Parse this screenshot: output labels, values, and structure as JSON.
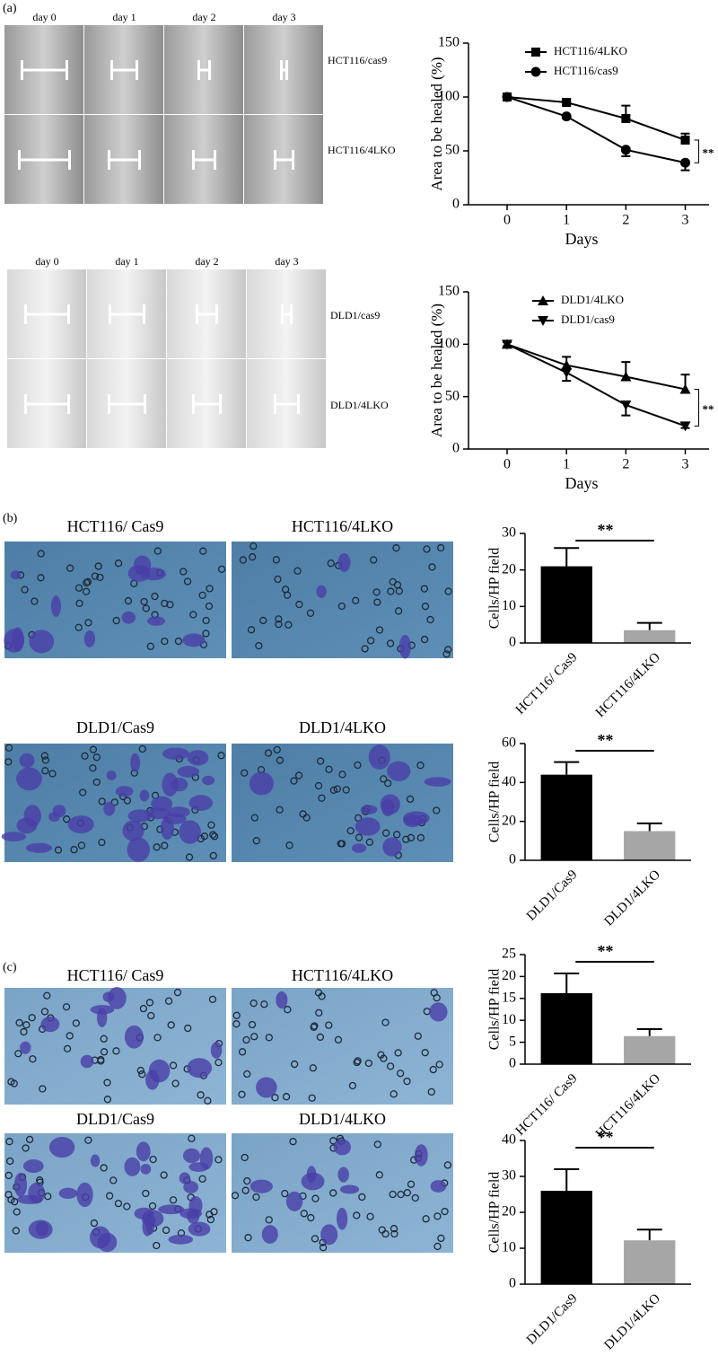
{
  "panels": [
    {
      "label": "(a)",
      "groups": [
        {
          "day_labels": [
            "day 0",
            "day 1",
            "day 2",
            "day 3"
          ],
          "row_labels": [
            "HCT116/cas9",
            "HCT116/4LKO"
          ]
        },
        {
          "day_labels": [
            "day 0",
            "day 1",
            "day 2",
            "day 3"
          ],
          "row_labels": [
            "DLD1/cas9",
            "DLD1/4LKO"
          ]
        }
      ]
    },
    {
      "label": "(b)",
      "image_labels": [
        "HCT116/ Cas9",
        "HCT116/4LKO",
        "DLD1/Cas9",
        "DLD1/4LKO"
      ]
    },
    {
      "label": "(c)",
      "image_labels": [
        "HCT116/ Cas9",
        "HCT116/4LKO",
        "DLD1/Cas9",
        "DLD1/4LKO"
      ]
    }
  ],
  "chart_data": [
    {
      "type": "line",
      "ylabel": "Area to be healed (%)",
      "xlabel": "Days",
      "x": [
        0,
        1,
        2,
        3
      ],
      "xlim": [
        -0.65,
        3.4
      ],
      "xticks": [
        0,
        1,
        2,
        3
      ],
      "ylim": [
        0,
        150
      ],
      "yticks": [
        0,
        50,
        100,
        150
      ],
      "series": [
        {
          "name": "HCT116/4LKO",
          "color": "#000000",
          "marker": "square",
          "values": [
            100,
            95,
            80,
            60
          ],
          "errors": [
            2,
            3,
            12,
            6
          ]
        },
        {
          "name": "HCT116/cas9",
          "color": "#000000",
          "marker": "circle",
          "values": [
            100,
            82,
            51,
            39
          ],
          "errors": [
            1,
            2,
            6,
            7
          ]
        }
      ],
      "annotation": "**"
    },
    {
      "type": "line",
      "ylabel": "Area to be healed (%)",
      "xlabel": "Days",
      "x": [
        0,
        1,
        2,
        3
      ],
      "xlim": [
        -0.65,
        3.4
      ],
      "xticks": [
        0,
        1,
        2,
        3
      ],
      "ylim": [
        0,
        150
      ],
      "yticks": [
        0,
        50,
        100,
        150
      ],
      "series": [
        {
          "name": "DLD1/4LKO",
          "color": "#000000",
          "marker": "triangle-up",
          "values": [
            100,
            80,
            69,
            57
          ],
          "errors": [
            2,
            8,
            14,
            14
          ]
        },
        {
          "name": "DLD1/cas9",
          "color": "#000000",
          "marker": "triangle-down",
          "values": [
            100,
            73,
            42,
            22
          ],
          "errors": [
            2,
            8,
            10,
            2
          ]
        }
      ],
      "annotation": "**"
    },
    {
      "type": "bar",
      "ylabel": "Cells/HP field",
      "categories": [
        "HCT116/ Cas9",
        "HCT116/4LKO"
      ],
      "values": [
        21,
        3.5
      ],
      "errors": [
        5,
        2
      ],
      "colors": [
        "#000000",
        "#a6a6a6"
      ],
      "ylim": [
        0,
        30
      ],
      "yticks": [
        0,
        10,
        20,
        30
      ],
      "annotation": "**"
    },
    {
      "type": "bar",
      "ylabel": "Cells/HP field",
      "categories": [
        "DLD1/Cas9",
        "DLD1/4LKO"
      ],
      "values": [
        44,
        15
      ],
      "errors": [
        6.5,
        4
      ],
      "colors": [
        "#000000",
        "#a6a6a6"
      ],
      "ylim": [
        0,
        60
      ],
      "yticks": [
        0,
        20,
        40,
        60
      ],
      "annotation": "**"
    },
    {
      "type": "bar",
      "ylabel": "Cells/HP field",
      "categories": [
        "HCT116/ Cas9",
        "HCT116/4LKO"
      ],
      "values": [
        16.2,
        6.4
      ],
      "errors": [
        4.5,
        1.6
      ],
      "colors": [
        "#000000",
        "#a6a6a6"
      ],
      "ylim": [
        0,
        25
      ],
      "yticks": [
        0,
        5,
        10,
        15,
        20,
        25
      ],
      "annotation": "**"
    },
    {
      "type": "bar",
      "ylabel": "Cells/HP field",
      "categories": [
        "DLD1/Cas9",
        "DLD1/4LKO"
      ],
      "values": [
        26,
        12.2
      ],
      "errors": [
        6,
        3
      ],
      "colors": [
        "#000000",
        "#a6a6a6"
      ],
      "ylim": [
        0,
        40
      ],
      "yticks": [
        0,
        10,
        20,
        30,
        40
      ],
      "annotation": "**"
    }
  ]
}
